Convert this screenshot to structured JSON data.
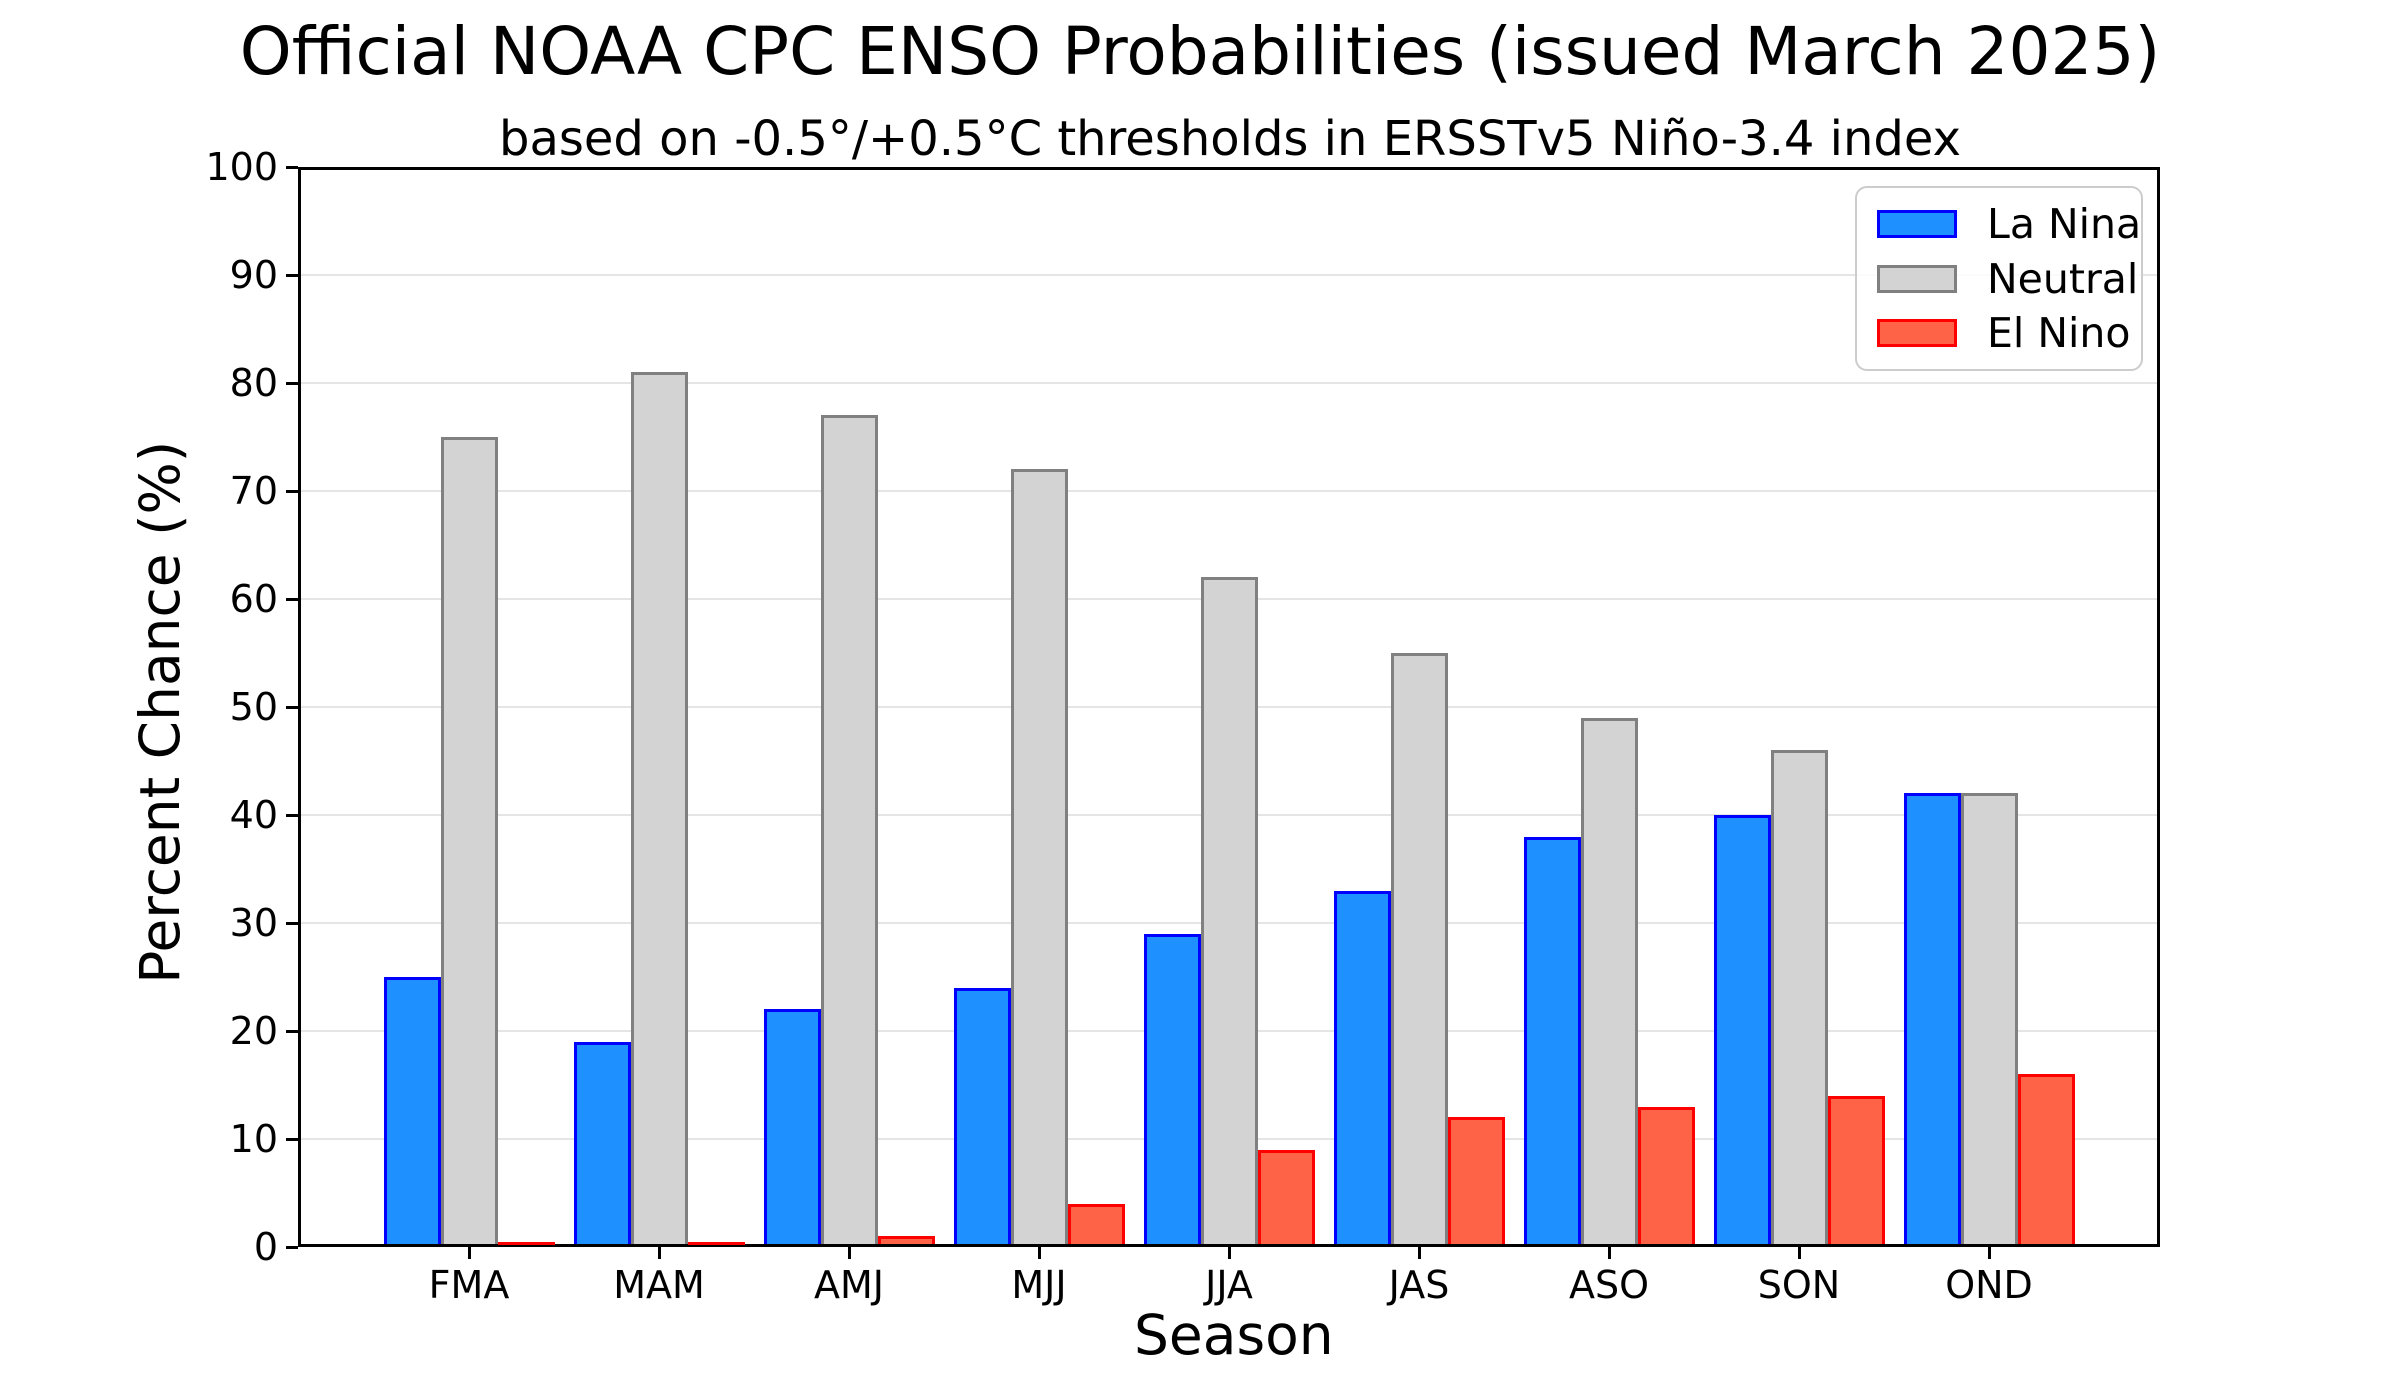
{
  "chart_data": {
    "type": "bar",
    "title": "Official NOAA CPC ENSO Probabilities (issued March 2025)",
    "subtitle": "based on -0.5°/+0.5°C thresholds in ERSSTv5 Niño-3.4 index",
    "xlabel": "Season",
    "ylabel": "Percent Chance (%)",
    "categories": [
      "FMA",
      "MAM",
      "AMJ",
      "MJJ",
      "JJA",
      "JAS",
      "ASO",
      "SON",
      "OND"
    ],
    "series": [
      {
        "name": "La Nina",
        "fill": "#1E90FF",
        "edge": "#0000FF",
        "values": [
          25,
          19,
          22,
          24,
          29,
          33,
          38,
          40,
          42
        ]
      },
      {
        "name": "Neutral",
        "fill": "#D3D3D3",
        "edge": "#808080",
        "values": [
          75,
          81,
          77,
          72,
          62,
          55,
          49,
          46,
          42
        ]
      },
      {
        "name": "El Nino",
        "fill": "#FF6347",
        "edge": "#FF0000",
        "values": [
          0,
          0,
          1,
          4,
          9,
          12,
          13,
          14,
          16
        ]
      }
    ],
    "ylim": [
      0,
      100
    ],
    "yticks": [
      0,
      10,
      20,
      30,
      40,
      50,
      60,
      70,
      80,
      90,
      100
    ],
    "grid": "horizontal",
    "legend_position": "upper right"
  }
}
